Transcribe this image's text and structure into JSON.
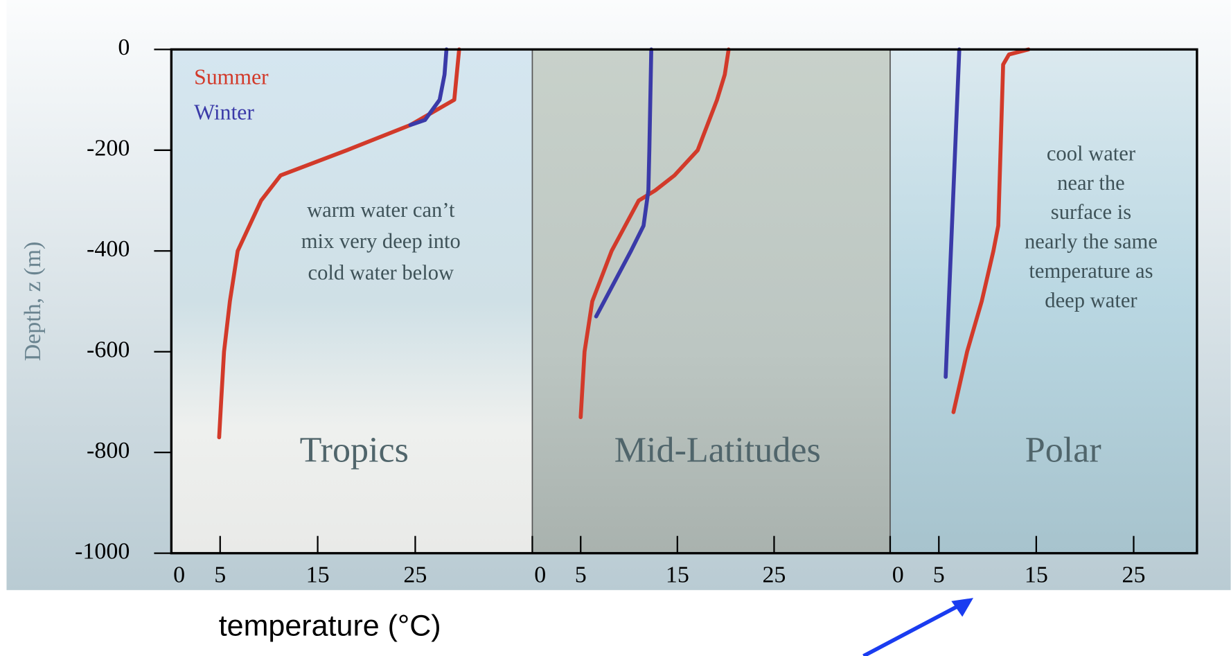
{
  "chart_data": [
    {
      "type": "line",
      "title": "Tropics",
      "ylabel": "Depth, z (m)",
      "xlabel": "temperature (°C)",
      "annotation": [
        "warm water can’t",
        "mix very deep into",
        "cold water below"
      ],
      "xlim": [
        0,
        37
      ],
      "xticks": [
        0,
        5,
        15,
        25
      ],
      "ylim": [
        -1000,
        0
      ],
      "yticks": [
        0,
        -200,
        -400,
        -600,
        -800,
        -1000
      ],
      "series": [
        {
          "name": "Summer",
          "color": "#d23a2a",
          "x": [
            29.5,
            29,
            24.5,
            18,
            11.2,
            9.2,
            6.8,
            6,
            5.4,
            5.1,
            4.9
          ],
          "values": [
            0,
            -100,
            -150,
            -200,
            -250,
            -300,
            -400,
            -500,
            -600,
            -700,
            -770
          ]
        },
        {
          "name": "Winter",
          "color": "#3a3aa8",
          "x": [
            28.2,
            28,
            27.5,
            26,
            24.5
          ],
          "values": [
            0,
            -50,
            -100,
            -140,
            -150
          ]
        }
      ]
    },
    {
      "type": "line",
      "title": "Mid-Latitudes",
      "xlim": [
        0,
        37
      ],
      "xticks": [
        0,
        5,
        15,
        25
      ],
      "ylim": [
        -1000,
        0
      ],
      "series": [
        {
          "color": "#d23a2a",
          "x": [
            20.3,
            19.9,
            19.1,
            17.1,
            14.7,
            12.7,
            11,
            8.2,
            6.2,
            5.4,
            5
          ],
          "values": [
            0,
            -50,
            -100,
            -200,
            -250,
            -280,
            -300,
            -400,
            -500,
            -600,
            -730
          ]
        },
        {
          "color": "#3a3aa8",
          "x": [
            12.3,
            12.1,
            12,
            11.5,
            10.2,
            6.6
          ],
          "values": [
            0,
            -200,
            -280,
            -350,
            -400,
            -530
          ]
        }
      ]
    },
    {
      "type": "line",
      "title": "Polar",
      "annotation": [
        "cool water",
        "near the",
        "surface is",
        "nearly the same",
        "temperature as",
        "deep water"
      ],
      "xlim": [
        0,
        31.5
      ],
      "xticks": [
        0,
        5,
        15,
        25
      ],
      "ylim": [
        -1000,
        0
      ],
      "series": [
        {
          "color": "#d23a2a",
          "x": [
            14.2,
            12.2,
            11.6,
            11.1,
            10.6,
            9.4,
            7.9,
            6.5
          ],
          "values": [
            0,
            -10,
            -30,
            -350,
            -400,
            -500,
            -600,
            -720
          ]
        },
        {
          "color": "#3a3aa8",
          "x": [
            7.1,
            5.7
          ],
          "values": [
            0,
            -650
          ]
        }
      ]
    }
  ]
}
